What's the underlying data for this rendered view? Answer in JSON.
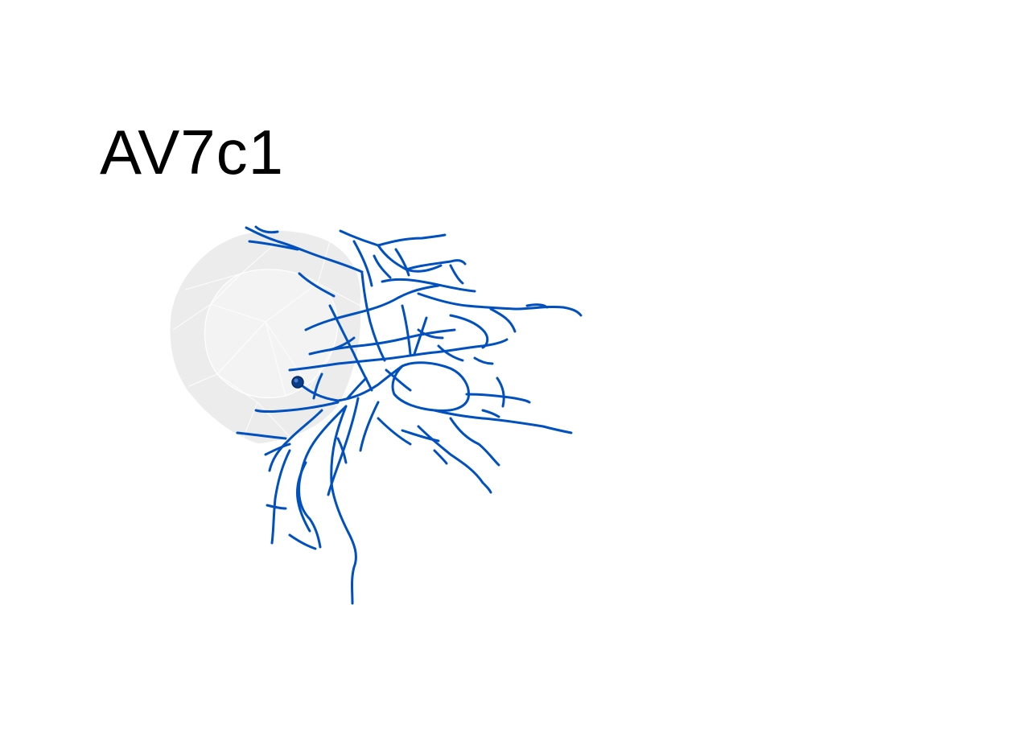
{
  "figure": {
    "title": "AV7c1",
    "neuron_color": "#0050c0",
    "soma_color": "#0a3d8a",
    "mesh_color": "#eeeeee",
    "mesh_edge_color": "#ffffff",
    "background": "#ffffff"
  }
}
